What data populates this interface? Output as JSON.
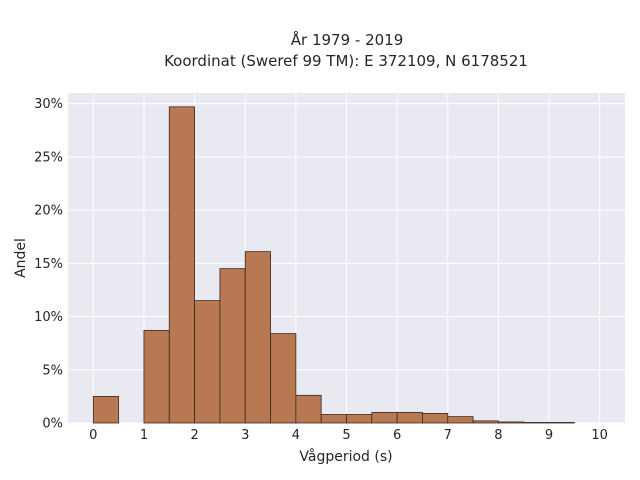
{
  "chart_data": {
    "type": "bar",
    "title_line1": "År 1979 - 2019",
    "title_line2": "Koordinat (Sweref 99 TM): E 372109, N 6178521",
    "xlabel": "Vågperiod (s)",
    "ylabel": "Andel",
    "xlim": [
      -0.5,
      10.5
    ],
    "ylim": [
      0,
      0.31
    ],
    "x_ticks": [
      "0",
      "1",
      "2",
      "3",
      "4",
      "5",
      "6",
      "7",
      "8",
      "9",
      "10"
    ],
    "y_ticks": [
      "0%",
      "5%",
      "10%",
      "15%",
      "20%",
      "25%",
      "30%"
    ],
    "bin_width": 0.5,
    "bins": [
      {
        "start": 0.0,
        "value": 0.025
      },
      {
        "start": 0.5,
        "value": 0.0
      },
      {
        "start": 1.0,
        "value": 0.087
      },
      {
        "start": 1.5,
        "value": 0.297
      },
      {
        "start": 2.0,
        "value": 0.115
      },
      {
        "start": 2.5,
        "value": 0.145
      },
      {
        "start": 3.0,
        "value": 0.161
      },
      {
        "start": 3.5,
        "value": 0.084
      },
      {
        "start": 4.0,
        "value": 0.026
      },
      {
        "start": 4.5,
        "value": 0.008
      },
      {
        "start": 5.0,
        "value": 0.008
      },
      {
        "start": 5.5,
        "value": 0.01
      },
      {
        "start": 6.0,
        "value": 0.01
      },
      {
        "start": 6.5,
        "value": 0.009
      },
      {
        "start": 7.0,
        "value": 0.006
      },
      {
        "start": 7.5,
        "value": 0.002
      },
      {
        "start": 8.0,
        "value": 0.001
      },
      {
        "start": 8.5,
        "value": 0.0005
      },
      {
        "start": 9.0,
        "value": 0.0005
      },
      {
        "start": 9.5,
        "value": 0.0
      }
    ],
    "grid": true,
    "colors": {
      "bar_fill": "#b87952",
      "bar_edge": "#3a2a20",
      "plot_background": "#e9e9f2",
      "grid": "#ffffff"
    }
  }
}
